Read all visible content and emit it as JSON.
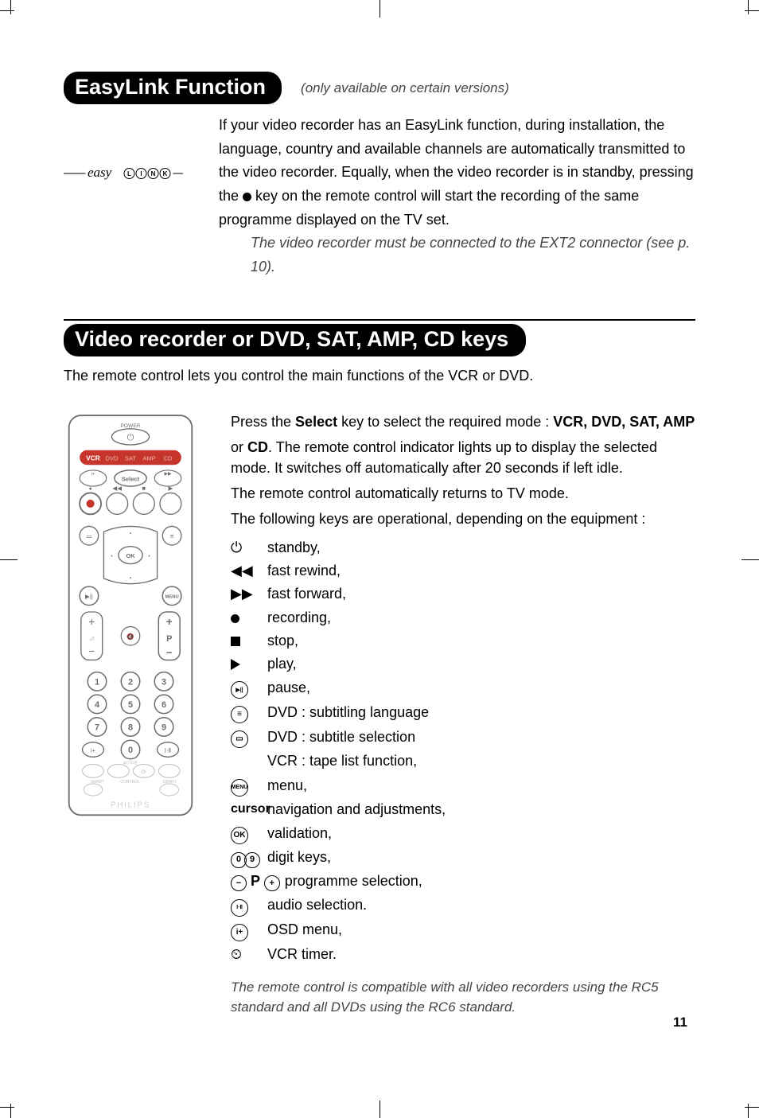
{
  "page_number": "11",
  "section1": {
    "title": "EasyLink Function",
    "subtitle": "(only available on certain versions)",
    "logo_text": "easy",
    "logo_letters": [
      "L",
      "I",
      "N",
      "K"
    ],
    "body_1": "If your video recorder has an EasyLink function, during installation, the language, country and available channels are automatically transmitted to the video recorder. Equally, when the video recorder is in standby, pressing the ",
    "body_2": " key on the remote control will start the recording of the same programme displayed on the TV set.",
    "note": "The video recorder must be connected to the EXT2 connector (see p. 10)."
  },
  "section2": {
    "title": "Video recorder or DVD, SAT, AMP, CD keys",
    "lead": "The remote control lets you control the main functions of the VCR or DVD.",
    "intro_1a": "Press the ",
    "intro_1b": "Select",
    "intro_1c": " key to select the required mode : ",
    "intro_1d": "VCR, DVD, SAT, AMP",
    "intro_2a": "or ",
    "intro_2b": "CD",
    "intro_2c": ". The remote control indicator lights up to display the selected mode. It switches off automatically after 20 seconds if left idle.",
    "intro_3": "The remote control automatically returns to TV mode.",
    "intro_4": "The following keys are operational, depending on the equipment :",
    "keys": [
      {
        "sym_type": "glyph",
        "sym": "⏻",
        "desc": "standby,"
      },
      {
        "sym_type": "glyph",
        "sym": "◀◀",
        "desc": "fast rewind,"
      },
      {
        "sym_type": "glyph",
        "sym": "▶▶",
        "desc": "fast forward,"
      },
      {
        "sym_type": "dot",
        "desc": "recording,"
      },
      {
        "sym_type": "stop",
        "desc": "stop,"
      },
      {
        "sym_type": "play",
        "desc": "play,"
      },
      {
        "sym_type": "circ",
        "sym": "▶||",
        "desc": "pause,"
      },
      {
        "sym_type": "circ",
        "sym": "≡",
        "desc": "DVD : subtitling language"
      },
      {
        "sym_type": "circ",
        "sym": "▭",
        "desc": "DVD : subtitle selection"
      },
      {
        "sym_type": "blank",
        "desc": "VCR : tape list function,"
      },
      {
        "sym_type": "circ",
        "sym": "MENU",
        "desc": "menu,"
      },
      {
        "sym_type": "word",
        "sym": "cursor",
        "desc": "navigation and adjustments,"
      },
      {
        "sym_type": "circ",
        "sym": "OK",
        "desc": "validation,"
      },
      {
        "sym_type": "digits",
        "sym1": "0",
        "sym2": "9",
        "desc": "digit keys,"
      },
      {
        "sym_type": "prog",
        "sym1": "−",
        "sym2": "P",
        "sym3": "+",
        "desc": "programme selection,"
      },
      {
        "sym_type": "circ",
        "sym": "Ⅰ·Ⅱ",
        "desc": "audio selection."
      },
      {
        "sym_type": "circ",
        "sym": "i+",
        "desc": "OSD menu,"
      },
      {
        "sym_type": "glyph",
        "sym": "⏲",
        "desc": "VCR timer."
      }
    ],
    "footnote": "The remote control is compatible with all video recorders using the RC5 standard and all DVDs using the RC6 standard."
  },
  "remote": {
    "power_label": "POWER",
    "mode_row": [
      "VCR",
      "DVD",
      "SAT",
      "AMP",
      "CD"
    ],
    "select_label": "Select",
    "ok_label": "OK",
    "menu_label": "MENU",
    "p_label": "P",
    "digits": [
      "1",
      "2",
      "3",
      "4",
      "5",
      "6",
      "7",
      "8",
      "9",
      "0"
    ],
    "active_label": "ACTIVE",
    "control_label": "CONTROL",
    "smart_label": "SMART",
    "brand_label": "PHILIPS",
    "colors": {
      "outline": "#6d6d6d",
      "text": "#6d6d6d",
      "red_pill_fill": "#c5352b",
      "red_pill_text": "#ffffff",
      "red_dot": "#c5352b"
    }
  },
  "colors": {
    "bg": "#ffffff",
    "black": "#000000",
    "grey_italic": "#444444"
  }
}
